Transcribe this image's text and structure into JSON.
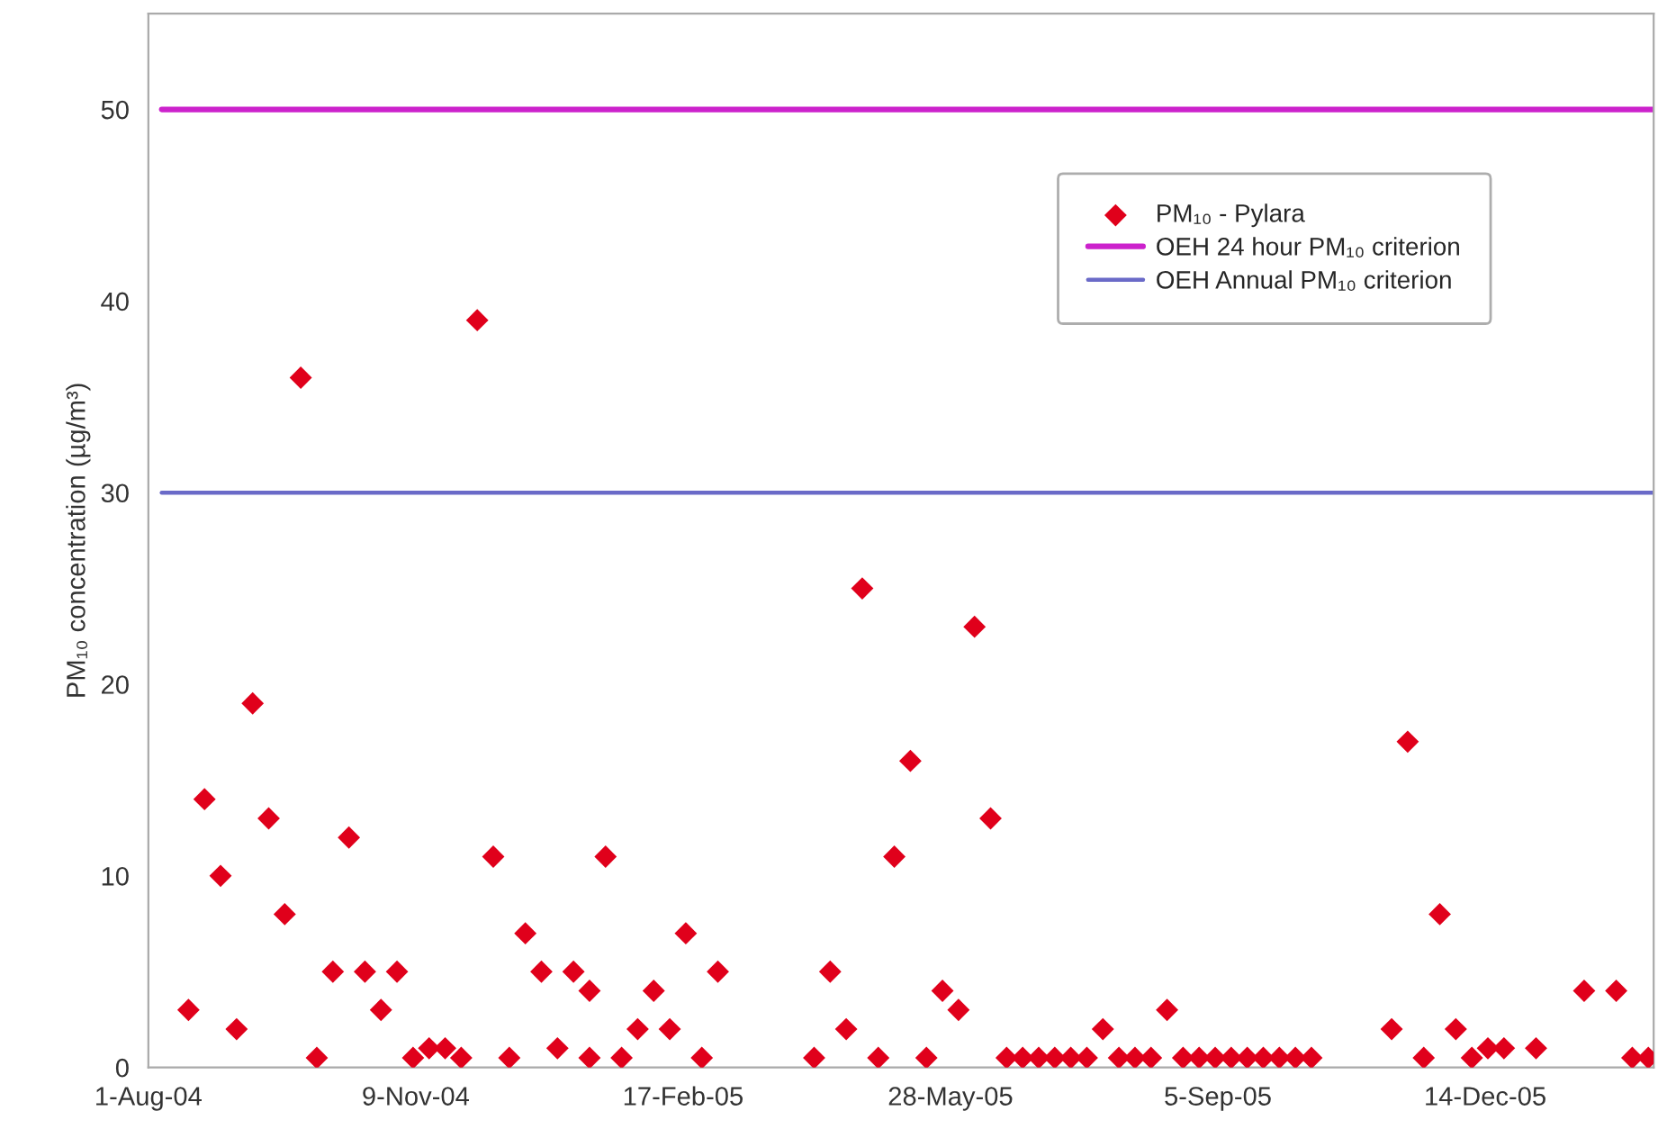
{
  "chart_data": {
    "type": "scatter",
    "ylabel": "PM₁₀ concentration (µg/m³)",
    "xlim": [
      "2004-08-01",
      "2006-02-15"
    ],
    "ylim": [
      0,
      55
    ],
    "xticks": [
      {
        "value": "2004-08-01",
        "label": "1-Aug-04"
      },
      {
        "value": "2004-11-09",
        "label": "9-Nov-04"
      },
      {
        "value": "2005-02-17",
        "label": "17-Feb-05"
      },
      {
        "value": "2005-05-28",
        "label": "28-May-05"
      },
      {
        "value": "2005-09-05",
        "label": "5-Sep-05"
      },
      {
        "value": "2005-12-14",
        "label": "14-Dec-05"
      }
    ],
    "yticks": [
      0,
      10,
      20,
      30,
      40,
      50
    ],
    "grid": false,
    "legend": "top right",
    "marker": "diamond",
    "x": [
      "2004-08-16",
      "2004-08-22",
      "2004-08-28",
      "2004-09-03",
      "2004-09-09",
      "2004-09-15",
      "2004-09-21",
      "2004-09-27",
      "2004-10-03",
      "2004-10-09",
      "2004-10-15",
      "2004-10-21",
      "2004-10-27",
      "2004-11-02",
      "2004-11-08",
      "2004-11-14",
      "2004-11-20",
      "2004-11-26",
      "2004-12-02",
      "2004-12-08",
      "2004-12-14",
      "2004-12-20",
      "2004-12-26",
      "2005-01-01",
      "2005-01-07",
      "2005-01-13",
      "2005-01-13",
      "2005-01-19",
      "2005-01-25",
      "2005-01-31",
      "2005-02-06",
      "2005-02-12",
      "2005-02-18",
      "2005-02-24",
      "2005-03-02",
      "2005-04-07",
      "2005-04-13",
      "2005-04-19",
      "2005-04-25",
      "2005-05-01",
      "2005-05-07",
      "2005-05-13",
      "2005-05-19",
      "2005-05-25",
      "2005-05-31",
      "2005-06-06",
      "2005-06-12",
      "2005-06-18",
      "2005-06-24",
      "2005-06-30",
      "2005-07-06",
      "2005-07-12",
      "2005-07-18",
      "2005-07-24",
      "2005-07-30",
      "2005-08-05",
      "2005-08-11",
      "2005-08-17",
      "2005-08-23",
      "2005-08-29",
      "2005-09-04",
      "2005-09-10",
      "2005-09-16",
      "2005-09-22",
      "2005-09-28",
      "2005-10-04",
      "2005-10-10",
      "2005-11-09",
      "2005-11-15",
      "2005-11-21",
      "2005-11-27",
      "2005-12-03",
      "2005-12-09",
      "2005-12-15",
      "2005-12-21",
      "2006-01-02",
      "2006-01-20",
      "2006-02-01",
      "2006-02-07",
      "2006-02-13"
    ],
    "series": [
      {
        "name": "PM₁₀ - Pylara",
        "color": "#e0001b",
        "values": [
          3,
          14,
          10,
          2,
          19,
          13,
          8,
          36,
          0.5,
          5,
          12,
          5,
          3,
          5,
          0.5,
          1,
          1,
          0.5,
          39,
          11,
          0.5,
          7,
          5,
          1,
          5,
          4,
          0.5,
          11,
          0.5,
          2,
          4,
          2,
          7,
          0.5,
          5,
          0.5,
          5,
          2,
          25,
          0.5,
          11,
          16,
          0.5,
          4,
          3,
          23,
          13,
          0.5,
          0.5,
          0.5,
          0.5,
          0.5,
          0.5,
          2,
          0.5,
          0.5,
          0.5,
          3,
          0.5,
          0.5,
          0.5,
          0.5,
          0.5,
          0.5,
          0.5,
          0.5,
          0.5,
          2,
          17,
          0.5,
          8,
          2,
          0.5,
          1,
          1,
          1,
          4,
          4,
          0.5,
          0.5
        ]
      }
    ],
    "ref_lines": [
      {
        "axis": "y",
        "value": 50,
        "label": "OEH 24 hour PM₁₀ criterion",
        "color": "#cc22cc",
        "line_style": "solid"
      },
      {
        "axis": "y",
        "value": 30,
        "label": "OEH Annual PM₁₀ criterion",
        "color": "#6a6ac8",
        "line_style": "solid"
      }
    ]
  }
}
